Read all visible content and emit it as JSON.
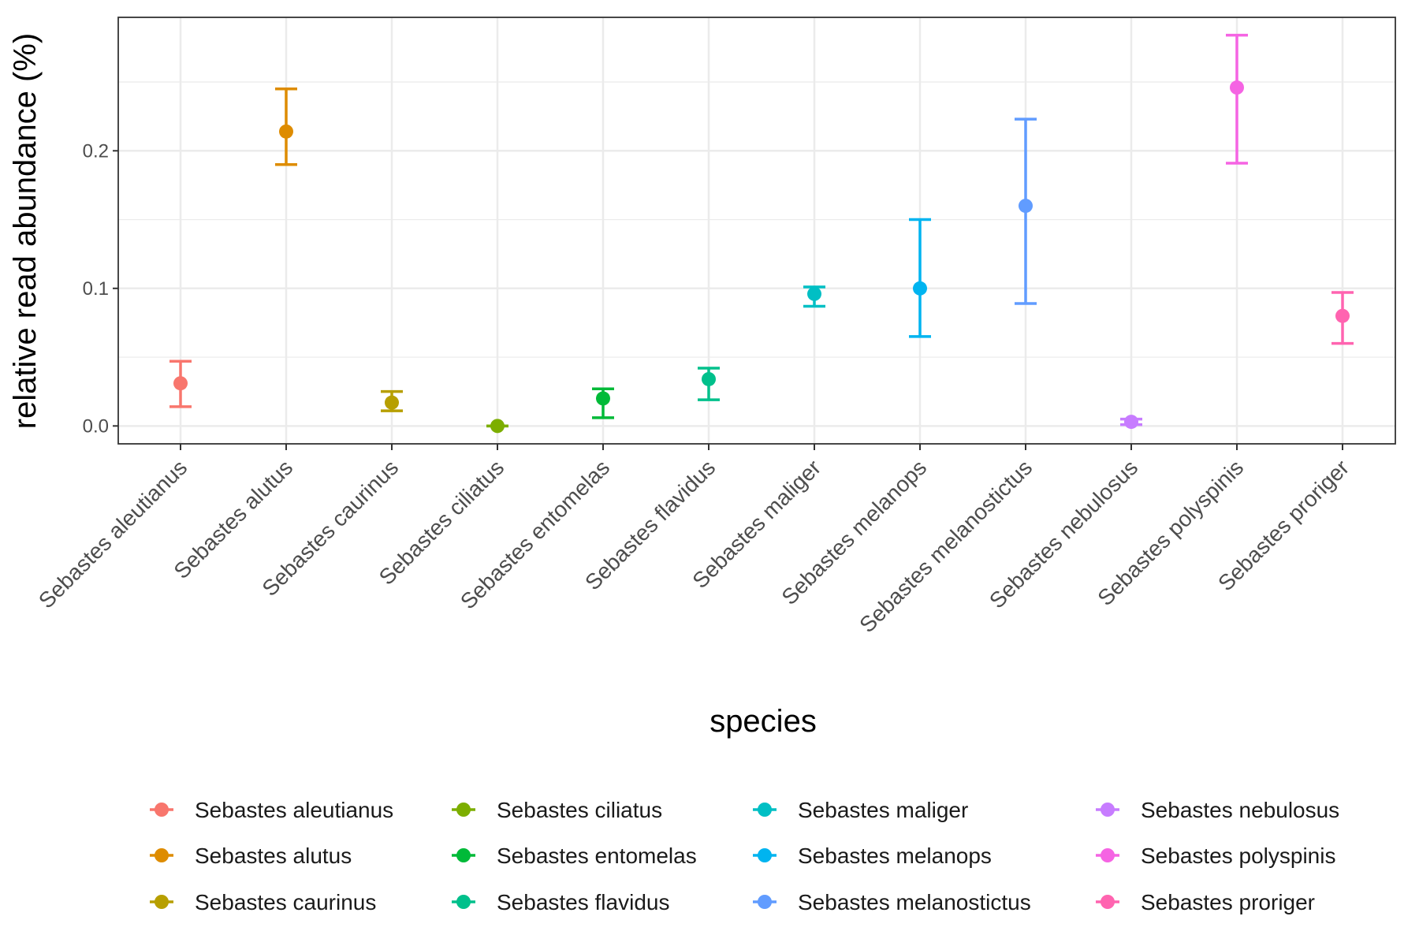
{
  "chart_data": {
    "type": "scatter",
    "xlabel": "species",
    "ylabel": "relative read abundance (%)",
    "ylim": [
      -0.013,
      0.297
    ],
    "y_ticks": [
      0.0,
      0.1,
      0.2
    ],
    "y_tick_labels": [
      "0.0",
      "0.1",
      "0.2"
    ],
    "grid": true,
    "legend_position": "bottom",
    "categories": [
      "Sebastes aleutianus",
      "Sebastes alutus",
      "Sebastes caurinus",
      "Sebastes ciliatus",
      "Sebastes entomelas",
      "Sebastes flavidus",
      "Sebastes maliger",
      "Sebastes melanops",
      "Sebastes melanostictus",
      "Sebastes nebulosus",
      "Sebastes polyspinis",
      "Sebastes proriger"
    ],
    "series": [
      {
        "name": "Sebastes aleutianus",
        "color": "#F8766D",
        "x": "Sebastes aleutianus",
        "y": 0.031,
        "ymin": 0.014,
        "ymax": 0.047
      },
      {
        "name": "Sebastes alutus",
        "color": "#DE8C00",
        "x": "Sebastes alutus",
        "y": 0.214,
        "ymin": 0.19,
        "ymax": 0.245
      },
      {
        "name": "Sebastes caurinus",
        "color": "#B79F00",
        "x": "Sebastes caurinus",
        "y": 0.017,
        "ymin": 0.011,
        "ymax": 0.025
      },
      {
        "name": "Sebastes ciliatus",
        "color": "#7CAE00",
        "x": "Sebastes ciliatus",
        "y": 0.0,
        "ymin": 0.0,
        "ymax": 0.0
      },
      {
        "name": "Sebastes entomelas",
        "color": "#00BA38",
        "x": "Sebastes entomelas",
        "y": 0.02,
        "ymin": 0.006,
        "ymax": 0.027
      },
      {
        "name": "Sebastes flavidus",
        "color": "#00C08B",
        "x": "Sebastes flavidus",
        "y": 0.034,
        "ymin": 0.019,
        "ymax": 0.042
      },
      {
        "name": "Sebastes maliger",
        "color": "#00BFC4",
        "x": "Sebastes maliger",
        "y": 0.096,
        "ymin": 0.087,
        "ymax": 0.101
      },
      {
        "name": "Sebastes melanops",
        "color": "#00B4F0",
        "x": "Sebastes melanops",
        "y": 0.1,
        "ymin": 0.065,
        "ymax": 0.15
      },
      {
        "name": "Sebastes melanostictus",
        "color": "#619CFF",
        "x": "Sebastes melanostictus",
        "y": 0.16,
        "ymin": 0.089,
        "ymax": 0.223
      },
      {
        "name": "Sebastes nebulosus",
        "color": "#C77CFF",
        "x": "Sebastes nebulosus",
        "y": 0.003,
        "ymin": 0.001,
        "ymax": 0.005
      },
      {
        "name": "Sebastes polyspinis",
        "color": "#F564E3",
        "x": "Sebastes polyspinis",
        "y": 0.246,
        "ymin": 0.191,
        "ymax": 0.284
      },
      {
        "name": "Sebastes proriger",
        "color": "#FF64B0",
        "x": "Sebastes proriger",
        "y": 0.08,
        "ymin": 0.06,
        "ymax": 0.097
      }
    ]
  }
}
